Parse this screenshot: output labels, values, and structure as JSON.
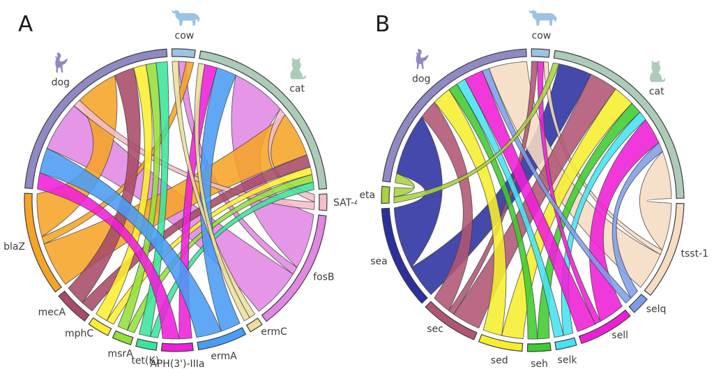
{
  "figure": {
    "background": "#ffffff",
    "panels": [
      {
        "letter": "A"
      },
      {
        "letter": "B"
      }
    ]
  },
  "text_color": "#3a3a3a",
  "chart_data": [
    {
      "type": "chord",
      "panel": "A",
      "legend_position": "around-circle",
      "animals": [
        {
          "name": "dog",
          "color": "#8f89c4",
          "icon": "dog-icon"
        },
        {
          "name": "cow",
          "color": "#9cc3e4",
          "icon": "cow-icon"
        },
        {
          "name": "cat",
          "color": "#accbb8",
          "icon": "cat-icon"
        }
      ],
      "genes": [
        {
          "name": "SAT-4",
          "color": "#f5bdc9"
        },
        {
          "name": "fosB",
          "color": "#e287e2"
        },
        {
          "name": "ermC",
          "color": "#ecdf9d"
        },
        {
          "name": "ermA",
          "color": "#4a9cf5"
        },
        {
          "name": "APH(3')-IIIa",
          "color": "#ef1fd9"
        },
        {
          "name": "tet(K)",
          "color": "#3be49c"
        },
        {
          "name": "msrA",
          "color": "#93e03a"
        },
        {
          "name": "mphC",
          "color": "#fdee30"
        },
        {
          "name": "mecA",
          "color": "#a84a68"
        },
        {
          "name": "blaZ",
          "color": "#f5a425"
        }
      ],
      "sector_order": [
        "cow",
        "cat",
        "SAT-4",
        "fosB",
        "ermC",
        "ermA",
        "APH(3')-IIIa",
        "tet(K)",
        "msrA",
        "mphC",
        "mecA",
        "blaZ",
        "dog"
      ],
      "links": [
        {
          "gene": "fosB",
          "animal": "cat",
          "value": 22
        },
        {
          "gene": "fosB",
          "animal": "cow",
          "value": 3
        },
        {
          "gene": "fosB",
          "animal": "dog",
          "value": 20
        },
        {
          "gene": "blaZ",
          "animal": "cat",
          "value": 18
        },
        {
          "gene": "blaZ",
          "animal": "cow",
          "value": 3
        },
        {
          "gene": "blaZ",
          "animal": "dog",
          "value": 17
        },
        {
          "gene": "SAT-4",
          "animal": "cat",
          "value": 3
        },
        {
          "gene": "SAT-4",
          "animal": "dog",
          "value": 3
        },
        {
          "gene": "mecA",
          "animal": "cat",
          "value": 5
        },
        {
          "gene": "mecA",
          "animal": "dog",
          "value": 8
        },
        {
          "gene": "mphC",
          "animal": "cat",
          "value": 3
        },
        {
          "gene": "mphC",
          "animal": "dog",
          "value": 5
        },
        {
          "gene": "msrA",
          "animal": "cat",
          "value": 3
        },
        {
          "gene": "msrA",
          "animal": "dog",
          "value": 4
        },
        {
          "gene": "tet(K)",
          "animal": "cat",
          "value": 3
        },
        {
          "gene": "tet(K)",
          "animal": "dog",
          "value": 4.5
        },
        {
          "gene": "APH(3')-IIIa",
          "animal": "cat",
          "value": 5
        },
        {
          "gene": "APH(3')-IIIa",
          "animal": "dog",
          "value": 6.5
        },
        {
          "gene": "ermA",
          "animal": "cat",
          "value": 8
        },
        {
          "gene": "ermA",
          "animal": "dog",
          "value": 10
        },
        {
          "gene": "ermC",
          "animal": "cow",
          "value": 2.5
        },
        {
          "gene": "ermC",
          "animal": "cat",
          "value": 2.5
        }
      ],
      "animal_anchor_order": {
        "dog": [
          "APH(3')-IIIa",
          "ermA",
          "fosB",
          "SAT-4",
          "blaZ",
          "mecA",
          "mphC",
          "msrA",
          "tet(K)"
        ],
        "cow": [
          "ermC",
          "fosB",
          "blaZ"
        ],
        "cat": [
          "ermC",
          "APH(3')-IIIa",
          "ermA",
          "fosB",
          "SAT-4",
          "blaZ",
          "mecA",
          "mphC",
          "msrA",
          "tet(K)"
        ]
      }
    },
    {
      "type": "chord",
      "panel": "B",
      "legend_position": "around-circle",
      "animals": [
        {
          "name": "dog",
          "color": "#8f89c4",
          "icon": "dog-icon"
        },
        {
          "name": "cow",
          "color": "#9cc3e4",
          "icon": "cow-icon"
        },
        {
          "name": "cat",
          "color": "#accbb8",
          "icon": "cat-icon"
        }
      ],
      "genes": [
        {
          "name": "tsst-1",
          "color": "#f6dcc2"
        },
        {
          "name": "selq",
          "color": "#7e9de9"
        },
        {
          "name": "sell",
          "color": "#ef1ed6"
        },
        {
          "name": "selk",
          "color": "#45e3f2"
        },
        {
          "name": "seh",
          "color": "#3ecc2e"
        },
        {
          "name": "sed",
          "color": "#f6ee2e"
        },
        {
          "name": "sec",
          "color": "#b05573"
        },
        {
          "name": "sea",
          "color": "#2b309f"
        },
        {
          "name": "eta",
          "color": "#a8d23f"
        }
      ],
      "sector_order": [
        "cow",
        "cat",
        "tsst-1",
        "selq",
        "sell",
        "selk",
        "seh",
        "sed",
        "sec",
        "sea",
        "eta",
        "dog"
      ],
      "links": [
        {
          "gene": "sea",
          "animal": "cat",
          "value": 14
        },
        {
          "gene": "sea",
          "animal": "dog",
          "value": 26
        },
        {
          "gene": "tsst-1",
          "animal": "cat",
          "value": 20
        },
        {
          "gene": "tsst-1",
          "animal": "cow",
          "value": 2
        },
        {
          "gene": "tsst-1",
          "animal": "dog",
          "value": 16
        },
        {
          "gene": "sec",
          "animal": "cat",
          "value": 12
        },
        {
          "gene": "sec",
          "animal": "cow",
          "value": 2.5
        },
        {
          "gene": "sec",
          "animal": "dog",
          "value": 8
        },
        {
          "gene": "sed",
          "animal": "cat",
          "value": 9
        },
        {
          "gene": "sed",
          "animal": "dog",
          "value": 8
        },
        {
          "gene": "seh",
          "animal": "cat",
          "value": 5
        },
        {
          "gene": "seh",
          "animal": "dog",
          "value": 4
        },
        {
          "gene": "selk",
          "animal": "cat",
          "value": 4
        },
        {
          "gene": "selk",
          "animal": "dog",
          "value": 4
        },
        {
          "gene": "sell",
          "animal": "cat",
          "value": 11
        },
        {
          "gene": "sell",
          "animal": "cow",
          "value": 2.5
        },
        {
          "gene": "sell",
          "animal": "dog",
          "value": 8
        },
        {
          "gene": "selq",
          "animal": "cat",
          "value": 4
        },
        {
          "gene": "selq",
          "animal": "dog",
          "value": 3
        },
        {
          "gene": "eta",
          "animal": "cat",
          "value": 2.5
        },
        {
          "gene": "eta",
          "animal": "dog",
          "value": 4
        }
      ],
      "animal_anchor_order": {
        "dog": [
          "eta",
          "sea",
          "sec",
          "sed",
          "seh",
          "selk",
          "sell",
          "selq",
          "tsst-1"
        ],
        "cow": [
          "sec",
          "sell",
          "tsst-1"
        ],
        "cat": [
          "eta",
          "sea",
          "sec",
          "sed",
          "seh",
          "selk",
          "sell",
          "selq",
          "tsst-1"
        ]
      }
    }
  ]
}
